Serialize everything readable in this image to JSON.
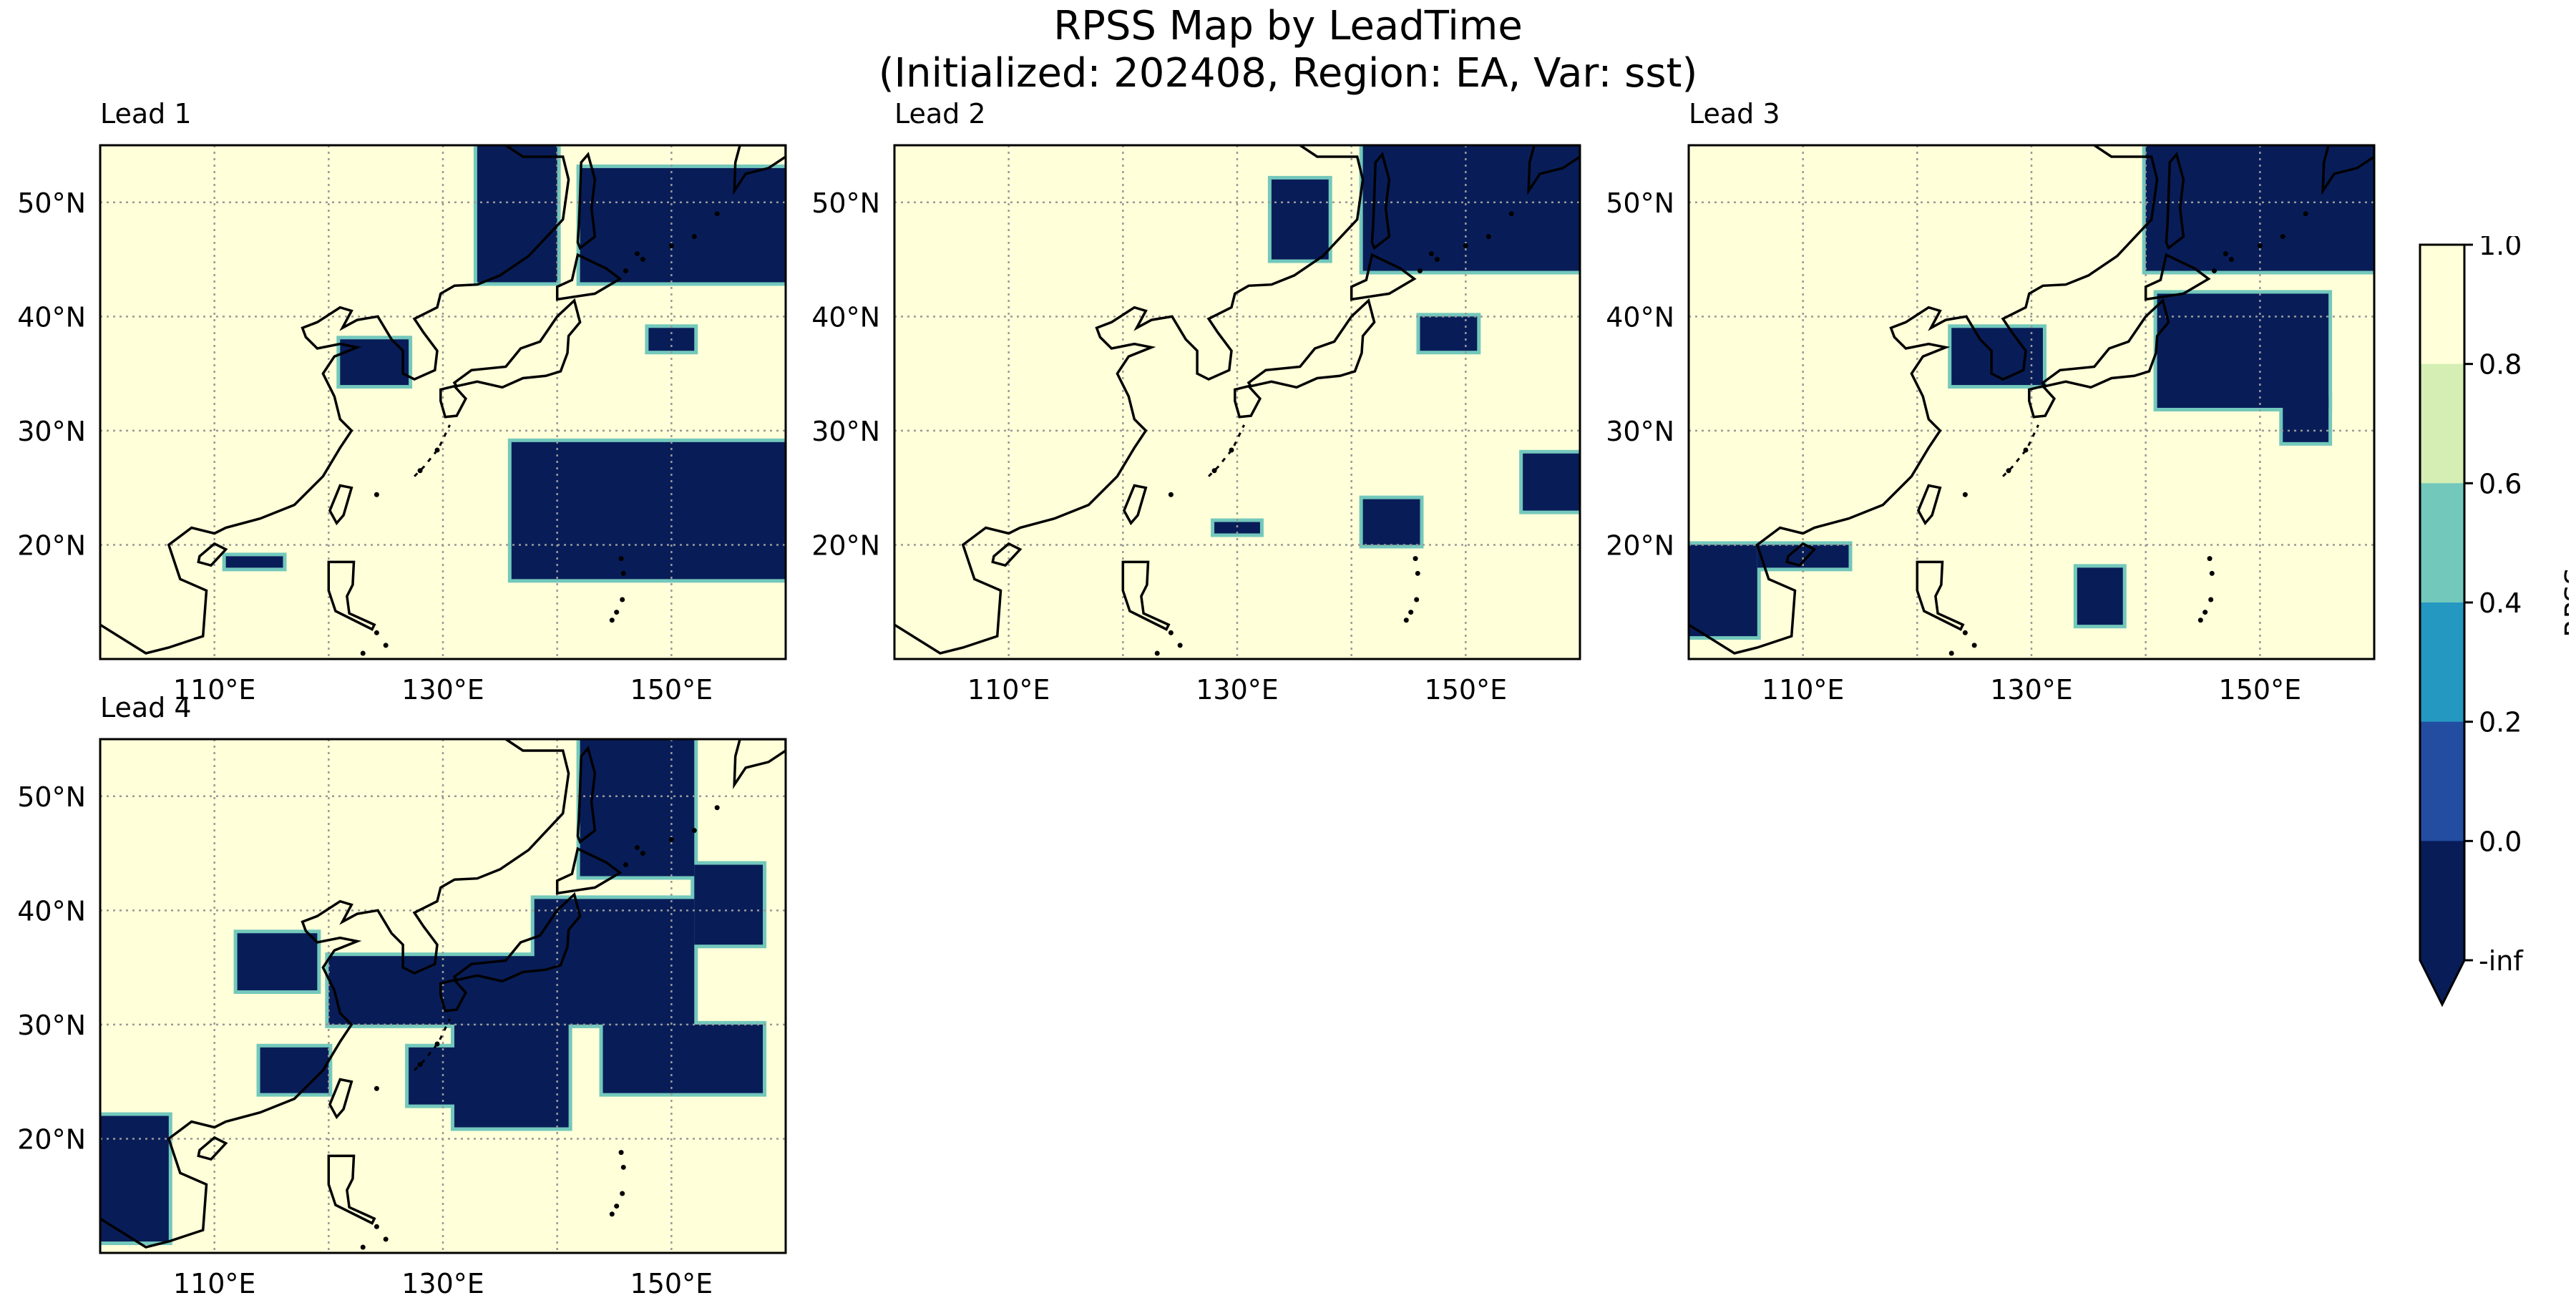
{
  "title": "RPSS Map by LeadTime",
  "subtitle": "(Initialized: 202408, Region: EA, Var: sst)",
  "chart_data": {
    "type": "heatmap",
    "x_ticks": [
      "110°E",
      "130°E",
      "150°E"
    ],
    "y_ticks": [
      "20°N",
      "30°N",
      "40°N",
      "50°N"
    ],
    "x_range": [
      100,
      160
    ],
    "y_range": [
      10,
      55
    ],
    "grid": "dotted",
    "panels": [
      {
        "label": "Lead 1",
        "rpss_below_0_regions": [
          [
            136,
            161,
            17,
            29
          ],
          [
            111,
            116,
            18,
            19
          ],
          [
            121,
            127,
            34,
            38
          ],
          [
            133,
            140,
            43,
            55
          ],
          [
            142,
            161,
            43,
            53
          ],
          [
            148,
            152,
            37,
            39
          ]
        ]
      },
      {
        "label": "Lead 2",
        "rpss_below_0_regions": [
          [
            141,
            160,
            44,
            55
          ],
          [
            133,
            138,
            45,
            52
          ],
          [
            146,
            151,
            37,
            40
          ],
          [
            141,
            146,
            20,
            24
          ],
          [
            155,
            160,
            23,
            28
          ],
          [
            128,
            132,
            21,
            22
          ]
        ]
      },
      {
        "label": "Lead 3",
        "rpss_below_0_regions": [
          [
            140,
            161,
            44,
            55
          ],
          [
            100,
            106,
            12,
            20
          ],
          [
            106,
            114,
            18,
            20
          ],
          [
            123,
            131,
            34,
            39
          ],
          [
            141,
            156,
            32,
            42
          ],
          [
            134,
            138,
            13,
            18
          ],
          [
            152,
            156,
            29,
            33
          ]
        ]
      },
      {
        "label": "Lead 4",
        "rpss_below_0_regions": [
          [
            100,
            106,
            11,
            22
          ],
          [
            112,
            119,
            33,
            38
          ],
          [
            120,
            140,
            30,
            36
          ],
          [
            138,
            152,
            30,
            41
          ],
          [
            144,
            158,
            24,
            30
          ],
          [
            131,
            141,
            21,
            30
          ],
          [
            142,
            152,
            43,
            55
          ],
          [
            152,
            158,
            37,
            44
          ],
          [
            127,
            133,
            23,
            28
          ],
          [
            114,
            120,
            24,
            28
          ]
        ]
      }
    ],
    "colorbar": {
      "label": "RPSS",
      "ticks": [
        "1.0",
        "0.8",
        "0.6",
        "0.4",
        "0.2",
        "0.0",
        "-inf"
      ],
      "levels": [
        {
          "range": "0.8 to 1.0",
          "color": "#ffffd9"
        },
        {
          "range": "0.6 to 0.8",
          "color": "#d4eeb3"
        },
        {
          "range": "0.4 to 0.6",
          "color": "#73c8bc"
        },
        {
          "range": "0.2 to 0.4",
          "color": "#2498c1"
        },
        {
          "range": "0.0 to 0.2",
          "color": "#234da0"
        },
        {
          "range": "-inf to 0.0",
          "color": "#081d58"
        }
      ],
      "extend": "min"
    }
  }
}
